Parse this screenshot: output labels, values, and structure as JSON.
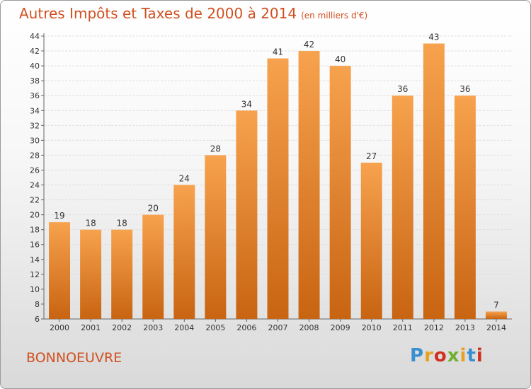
{
  "header": {
    "title": "Autres Impôts et Taxes de 2000 à 2014",
    "subtitle": "(en milliers d'€)"
  },
  "footer": {
    "commune": "BONNOEUVRE",
    "logo": [
      "P",
      "r",
      "o",
      "x",
      "i",
      "t",
      "i"
    ]
  },
  "colors": {
    "bar_top": "#f7a24e",
    "bar_bottom": "#c86412",
    "accent": "#d05020"
  },
  "chart_data": {
    "type": "bar",
    "title": "Autres Impôts et Taxes de 2000 à 2014",
    "subtitle": "(en milliers d'€)",
    "categories": [
      "2000",
      "2001",
      "2002",
      "2003",
      "2004",
      "2005",
      "2006",
      "2007",
      "2008",
      "2009",
      "2010",
      "2011",
      "2012",
      "2013",
      "2014"
    ],
    "values": [
      19,
      18,
      18,
      20,
      24,
      28,
      34,
      41,
      42,
      40,
      27,
      36,
      43,
      36,
      7
    ],
    "ylim": [
      6,
      44
    ],
    "yticks": [
      6,
      8,
      10,
      12,
      14,
      16,
      18,
      20,
      22,
      24,
      26,
      28,
      30,
      32,
      34,
      36,
      38,
      40,
      42,
      44
    ],
    "grid": true,
    "legend": "none"
  }
}
